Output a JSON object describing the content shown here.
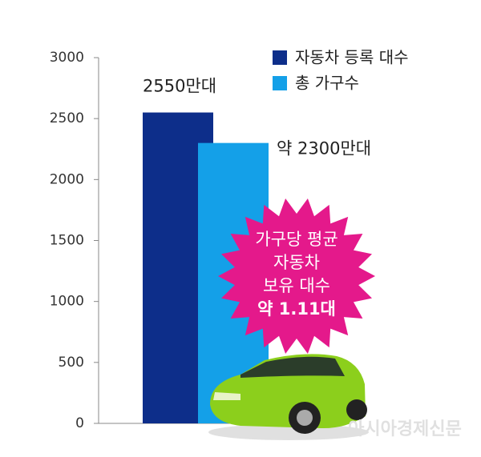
{
  "chart_data": {
    "type": "bar",
    "categories": [
      null
    ],
    "series": [
      {
        "name": "자동차 등록 대수",
        "color": "#0d2e8a",
        "values": [
          2550
        ],
        "value_labels": [
          "2550만대"
        ]
      },
      {
        "name": "총 가구수",
        "color": "#14a0e8",
        "values": [
          2300
        ],
        "value_labels": [
          "약 2300만대"
        ]
      }
    ],
    "ylim": [
      0,
      3000
    ],
    "yticks": [
      0,
      500,
      1000,
      1500,
      2000,
      2500,
      3000
    ],
    "grid": false,
    "annotation": [
      "가구당 평균",
      "자동차",
      "보유 대수",
      "약 1.11대"
    ],
    "source": "아시아경제신문"
  }
}
